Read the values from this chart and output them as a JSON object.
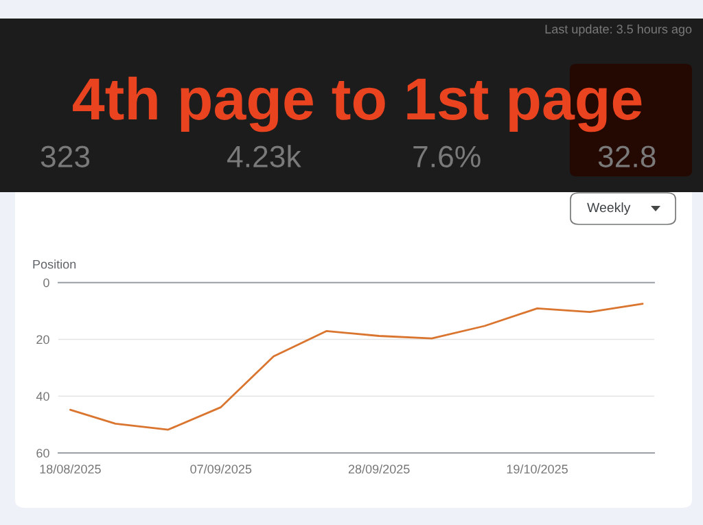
{
  "chart_data": {
    "type": "line",
    "title": "4th page to 1st page",
    "ylabel": "Position",
    "x": [
      "2025-08-18",
      "2025-08-24",
      "2025-08-31",
      "2025-09-07",
      "2025-09-14",
      "2025-09-21",
      "2025-09-28",
      "2025-10-05",
      "2025-10-12",
      "2025-10-19",
      "2025-10-26",
      "2025-11-02"
    ],
    "series": [
      {
        "color": "#da7530",
        "values": [
          44.8,
          49.7,
          51.8,
          43.9,
          26.0,
          17.1,
          18.8,
          19.7,
          15.3,
          9.1,
          10.4,
          7.5
        ]
      }
    ],
    "xlim": [
      "2025-08-16T10:00",
      "2025-11-03T13:00"
    ],
    "xticks": [
      {
        "value": "2025-08-18",
        "label": "18/08/2025"
      },
      {
        "value": "2025-09-07",
        "label": "07/09/2025"
      },
      {
        "value": "2025-09-28",
        "label": "28/09/2025"
      },
      {
        "value": "2025-10-19",
        "label": "19/10/2025"
      }
    ],
    "ylim": [
      60,
      0
    ],
    "yticks": [
      0,
      20,
      40,
      60
    ],
    "grid": "y",
    "annotations": [
      "Last update: 3.5 hours ago",
      "323",
      "4.23k",
      "7.6%",
      "32.8",
      "Weekly"
    ]
  }
}
